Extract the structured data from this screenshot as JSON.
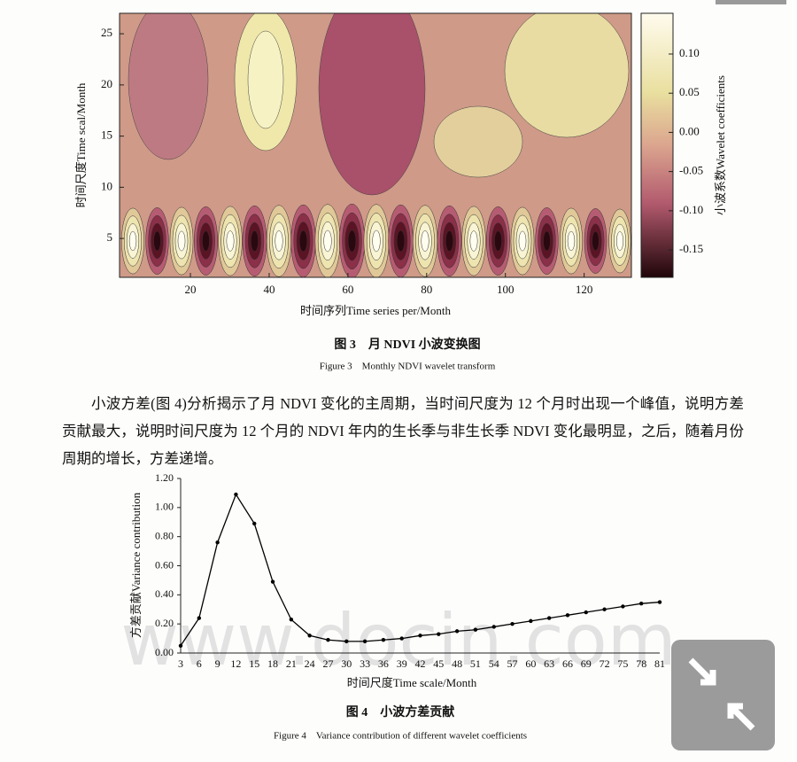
{
  "chart_data": [
    {
      "type": "contour",
      "title": "图 3　月 NDVI 小波变换图",
      "subtitle": "Figure 3　Monthly NDVI wavelet transform",
      "xlabel": "时间序列Time series per/Month",
      "ylabel": "时间尺度Time scal/Month",
      "xlim": [
        2,
        132
      ],
      "xticks": [
        20,
        40,
        60,
        80,
        100,
        120
      ],
      "ylim": [
        1.2,
        27
      ],
      "yticks": [
        5,
        10,
        15,
        20,
        25
      ],
      "colorbar": {
        "label": "小波系数Wavelet coefficients",
        "lim": [
          -0.185,
          0.152
        ],
        "ticks": [
          {
            "value": 0.1,
            "label": "0.10"
          },
          {
            "value": 0.05,
            "label": "0.05"
          },
          {
            "value": 0,
            "label": "0.00"
          },
          {
            "value": -0.05,
            "label": "-0.05"
          },
          {
            "value": -0.1,
            "label": "-0.10"
          },
          {
            "value": -0.15,
            "label": "-0.15"
          }
        ]
      }
    },
    {
      "type": "line",
      "title": "图 4　小波方差贡献",
      "subtitle": "Figure 4　Variance contribution of different wavelet coefficients",
      "xlabel": "时间尺度Time scale/Month",
      "ylabel": "方差贡献Variance contribution",
      "categories": [
        3,
        6,
        9,
        12,
        15,
        18,
        21,
        24,
        27,
        30,
        33,
        36,
        39,
        42,
        45,
        48,
        51,
        54,
        57,
        60,
        63,
        66,
        69,
        72,
        75,
        78,
        81
      ],
      "values": [
        0.05,
        0.24,
        0.76,
        1.09,
        0.89,
        0.49,
        0.23,
        0.12,
        0.09,
        0.08,
        0.08,
        0.09,
        0.1,
        0.12,
        0.13,
        0.15,
        0.16,
        0.18,
        0.2,
        0.22,
        0.24,
        0.26,
        0.28,
        0.3,
        0.32,
        0.34,
        0.35
      ],
      "color": "#000000",
      "ylim": [
        0,
        1.2
      ],
      "yticks": [
        {
          "value": 0,
          "label": "0.00"
        },
        {
          "value": 0.2,
          "label": "0.20"
        },
        {
          "value": 0.4,
          "label": "0.40"
        },
        {
          "value": 0.6,
          "label": "0.60"
        },
        {
          "value": 0.8,
          "label": "0.80"
        },
        {
          "value": 1,
          "label": "1.00"
        },
        {
          "value": 1.2,
          "label": "1.20"
        }
      ]
    }
  ],
  "paragraph": "小波方差(图 4)分析揭示了月 NDVI 变化的主周期，当时间尺度为 12 个月时出现一个峰值，说明方差贡献最大，说明时间尺度为 12 个月的 NDVI 年内的生长季与非生长季 NDVI 变化最明显，之后，随着月份周期的增长，方差递增。",
  "watermark": "www.docin.com"
}
